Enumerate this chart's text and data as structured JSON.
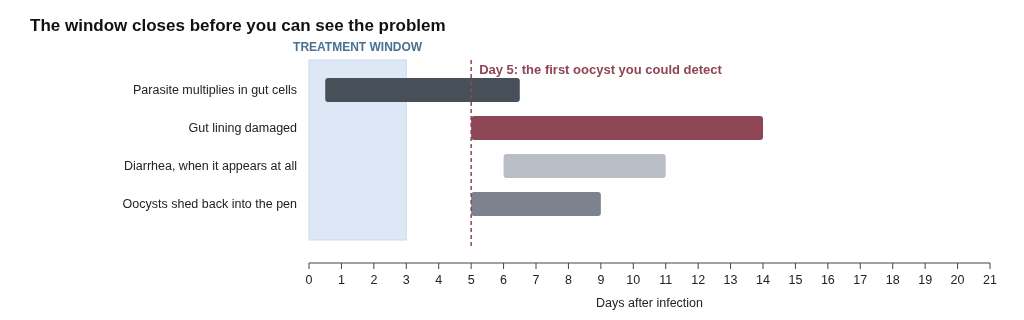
{
  "chart_data": {
    "type": "bar",
    "orientation": "horizontal",
    "title": "The window closes before you can see the problem",
    "xlabel": "Days after infection",
    "categories": [
      "Parasite multiplies in gut cells",
      "Gut lining damaged",
      "Diarrhea, when it appears at all",
      "Oocysts shed back into the pen"
    ],
    "base": [
      0.5,
      5,
      6,
      5
    ],
    "values": [
      6,
      9,
      5,
      4
    ],
    "colors": [
      "#474f58",
      "#8e4555",
      "#b9bec6",
      "#7c838c"
    ],
    "xlim": [
      0,
      21
    ],
    "xticks": [
      0,
      1,
      2,
      3,
      4,
      5,
      6,
      7,
      8,
      9,
      10,
      11,
      12,
      13,
      14,
      15,
      16,
      17,
      18,
      19,
      20,
      21
    ],
    "bands": [
      {
        "axis": "x",
        "from": 0,
        "to": 3,
        "label": "TREATMENT WINDOW",
        "color": "#dce8f5"
      }
    ],
    "ref_lines": [
      {
        "axis": "x",
        "value": 5,
        "label": "Day 5: the first oocyst you could detect",
        "color": "#8e4555",
        "line_style": "dashed"
      }
    ]
  }
}
